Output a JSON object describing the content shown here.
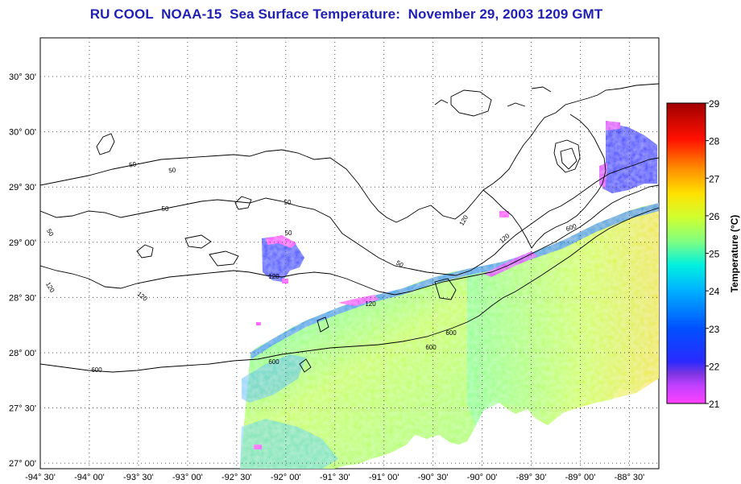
{
  "title": "RU COOL  NOAA-15  Sea Surface Temperature:  November 29, 2003 1209 GMT",
  "map": {
    "longitude_labels": [
      "-94° 30'",
      "-94° 00'",
      "-93° 30'",
      "-93° 00'",
      "-92° 30'",
      "-92° 00'",
      "-91° 30'",
      "-91° 00'",
      "-90° 30'",
      "-90° 00'",
      "-89° 30'",
      "-89° 00'",
      "-88° 30'"
    ],
    "latitude_labels": [
      "30° 30'",
      "30° 00'",
      "29° 30'",
      "29° 00'",
      "28° 30'",
      "28° 00'",
      "27° 30'",
      "27° 00'"
    ],
    "longitude_range": [
      -94.5,
      -88.2
    ],
    "latitude_range": [
      26.95,
      30.85
    ],
    "grid": "dotted",
    "bathymetry_contour_labels": [
      "50",
      "50",
      "50",
      "50",
      "50",
      "50",
      "50",
      "120",
      "120",
      "120",
      "120",
      "120",
      "120",
      "600",
      "600",
      "600",
      "600",
      "600"
    ]
  },
  "colorbar": {
    "title": "Temperature (°C)",
    "tick_labels": [
      "29",
      "28",
      "27",
      "26",
      "25",
      "24",
      "23",
      "22",
      "21"
    ],
    "min": 21,
    "max": 29,
    "colors": [
      "#ff40ff",
      "#7a35e0",
      "#2222ff",
      "#0070ff",
      "#00c8ff",
      "#40ffc0",
      "#c0ff40",
      "#ffe000",
      "#ff8000",
      "#ff1000",
      "#a00000"
    ]
  }
}
